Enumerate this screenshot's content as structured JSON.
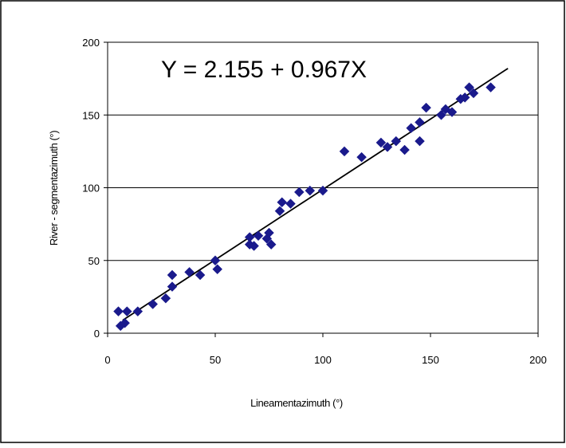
{
  "chart_data": {
    "type": "scatter",
    "xlabel": "Lineamentazimuth (°)",
    "ylabel": "River - segmentazimuth (°)",
    "xlim": [
      0,
      200
    ],
    "ylim": [
      0,
      200
    ],
    "xticks": [
      "0",
      "50",
      "100",
      "150",
      "200"
    ],
    "yticks": [
      "0",
      "50",
      "100",
      "150",
      "200"
    ],
    "grid": "horizontal",
    "annotation": "Y = 2.155 + 0.967X",
    "marker_color": "#1a1a8c",
    "trendline": {
      "intercept": 2.155,
      "slope": 0.967,
      "x_range": [
        7,
        186
      ]
    },
    "points": [
      [
        5,
        15
      ],
      [
        6,
        5
      ],
      [
        8,
        7
      ],
      [
        9,
        15
      ],
      [
        14,
        15
      ],
      [
        21,
        20
      ],
      [
        27,
        24
      ],
      [
        30,
        40
      ],
      [
        30,
        32
      ],
      [
        38,
        42
      ],
      [
        43,
        40
      ],
      [
        50,
        50
      ],
      [
        51,
        44
      ],
      [
        66,
        66
      ],
      [
        66,
        61
      ],
      [
        68,
        60
      ],
      [
        70,
        67
      ],
      [
        74,
        65
      ],
      [
        75,
        69
      ],
      [
        76,
        61
      ],
      [
        80,
        84
      ],
      [
        81,
        90
      ],
      [
        85,
        89
      ],
      [
        89,
        97
      ],
      [
        94,
        98
      ],
      [
        100,
        98
      ],
      [
        110,
        125
      ],
      [
        118,
        121
      ],
      [
        127,
        131
      ],
      [
        130,
        128
      ],
      [
        134,
        132
      ],
      [
        138,
        126
      ],
      [
        141,
        141
      ],
      [
        145,
        145
      ],
      [
        145,
        132
      ],
      [
        148,
        155
      ],
      [
        155,
        150
      ],
      [
        157,
        154
      ],
      [
        160,
        152
      ],
      [
        164,
        161
      ],
      [
        166,
        162
      ],
      [
        168,
        169
      ],
      [
        170,
        165
      ],
      [
        178,
        169
      ]
    ]
  }
}
